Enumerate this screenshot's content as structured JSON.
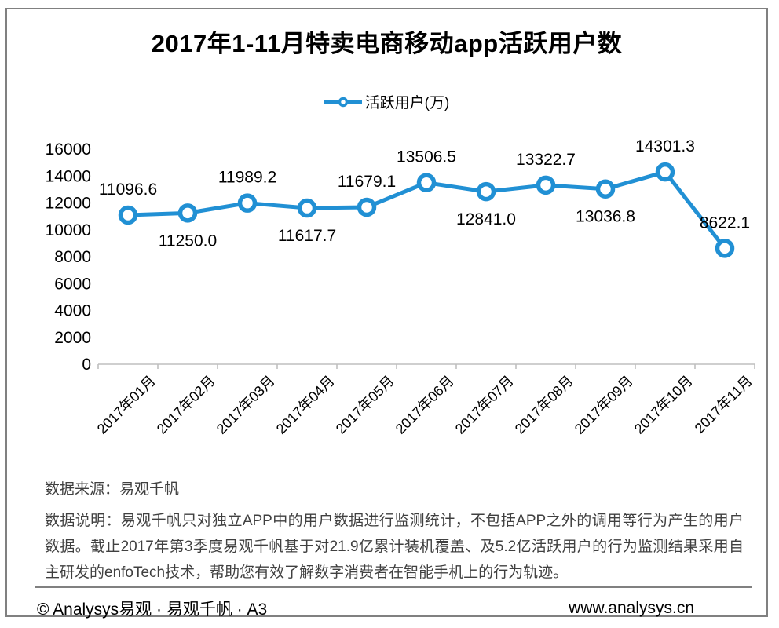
{
  "title": "2017年1-11月特卖电商移动app活跃用户数",
  "legend": {
    "label": "活跃用户(万)"
  },
  "chart_data": {
    "type": "line",
    "title": "2017年1-11月特卖电商移动app活跃用户数",
    "categories": [
      "2017年01月",
      "2017年02月",
      "2017年03月",
      "2017年04月",
      "2017年05月",
      "2017年06月",
      "2017年07月",
      "2017年08月",
      "2017年09月",
      "2017年10月",
      "2017年11月"
    ],
    "series": [
      {
        "name": "活跃用户(万)",
        "values": [
          11096.6,
          11250.0,
          11989.2,
          11617.7,
          11679.1,
          13506.5,
          12841.0,
          13322.7,
          13036.8,
          14301.3,
          8622.1
        ],
        "value_labels": [
          "11096.6",
          "11250.0",
          "11989.2",
          "11617.7",
          "11679.1",
          "13506.5",
          "12841.0",
          "13322.7",
          "13036.8",
          "14301.3",
          "8622.1"
        ],
        "label_positions": [
          "above",
          "below",
          "above",
          "below",
          "above",
          "above",
          "below",
          "above",
          "below",
          "above",
          "above"
        ]
      }
    ],
    "xlabel": "",
    "ylabel": "",
    "ylim": [
      0,
      16000
    ],
    "ytick_step": 2000,
    "ytick_labels": [
      "0",
      "2000",
      "4000",
      "6000",
      "8000",
      "10000",
      "12000",
      "14000",
      "16000"
    ],
    "grid": false,
    "legend_position": "top",
    "line_color": "#2190D4",
    "marker_fill": "#FFFFFF",
    "axis_color": "#BFBFBF",
    "label_color": "#000000"
  },
  "notes": {
    "source": "数据来源：易观千帆",
    "description": "数据说明：易观千帆只对独立APP中的用户数据进行监测统计，不包括APP之外的调用等行为产生的用户数据。截止2017年第3季度易观千帆基于对21.9亿累计装机覆盖、及5.2亿活跃用户的行为监测结果采用自主研发的enfoTech技术，帮助您有效了解数字消费者在智能手机上的行为轨迹。"
  },
  "footer": {
    "left": "© Analysys易观 · 易观千帆 · A3",
    "right": "www.analysys.cn"
  }
}
